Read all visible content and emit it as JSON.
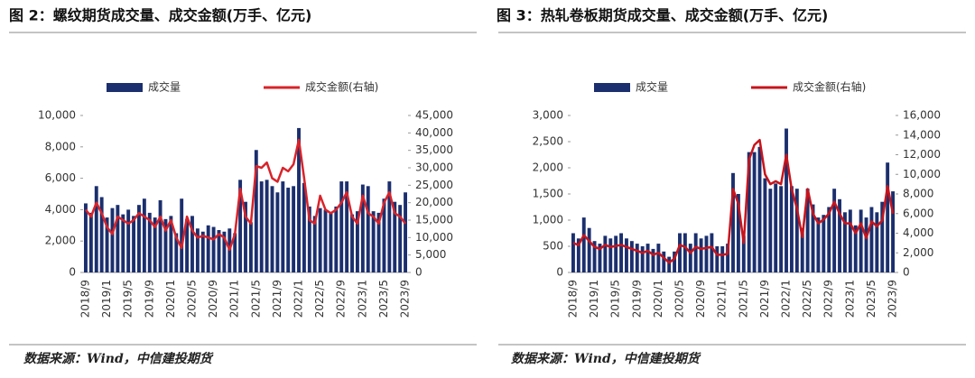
{
  "chart_data": [
    {
      "type": "bar-line",
      "title": "图 2：螺纹期货成交量、成交金额(万手、亿元)",
      "source": "数据来源：Wind，中信建投期货",
      "categories": [
        "2018/9",
        null,
        null,
        null,
        "2019/1",
        null,
        null,
        null,
        "2019/5",
        null,
        null,
        null,
        "2019/9",
        null,
        null,
        null,
        "2020/1",
        null,
        null,
        null,
        "2020/5",
        null,
        null,
        null,
        "2020/9",
        null,
        null,
        null,
        "2021/1",
        null,
        null,
        null,
        "2021/5",
        null,
        null,
        null,
        "2021/9",
        null,
        null,
        null,
        "2022/1",
        null,
        null,
        null,
        "2022/5",
        null,
        null,
        null,
        "2022/9",
        null,
        null,
        null,
        "2023/1",
        null,
        null,
        null,
        "2023/5",
        null,
        null,
        null,
        "2023/9"
      ],
      "series": [
        {
          "name": "成交量",
          "color": "#1b2f6e",
          "values": [
            4400,
            3800,
            5500,
            4800,
            3500,
            4100,
            4300,
            3700,
            4000,
            3600,
            4300,
            4700,
            3800,
            3500,
            4600,
            3400,
            3600,
            2500,
            4700,
            3400,
            3600,
            2800,
            2600,
            3000,
            2900,
            2700,
            2600,
            2800,
            2500,
            5900,
            4500,
            3200,
            7800,
            5800,
            5900,
            5500,
            5100,
            5800,
            5400,
            5500,
            9200,
            5700,
            4200,
            3600,
            4100,
            4000,
            3800,
            4200,
            5800,
            5800,
            3700,
            3900,
            5600,
            5500,
            3900,
            3800,
            4700,
            5800,
            4500,
            4300,
            5100
          ]
        },
        {
          "name": "成交金额(右轴)",
          "color": "#d9232a",
          "axis": "y2",
          "values": [
            18000,
            16000,
            20000,
            17000,
            13000,
            11000,
            16000,
            15000,
            14000,
            15000,
            17000,
            16000,
            15000,
            13000,
            16000,
            12000,
            15000,
            10000,
            7000,
            16000,
            12000,
            10000,
            10500,
            10000,
            9500,
            11000,
            10000,
            6500,
            11000,
            24000,
            16000,
            14000,
            30500,
            30000,
            31500,
            27000,
            26000,
            30000,
            29000,
            31000,
            38000,
            27000,
            15000,
            14000,
            22000,
            18000,
            17000,
            18000,
            20000,
            23000,
            16000,
            14000,
            22000,
            17000,
            16000,
            14000,
            20000,
            23000,
            17000,
            16000,
            14000
          ]
        }
      ],
      "ylim": [
        0,
        10000
      ],
      "yticks": [
        0,
        {
          "value": 2000,
          "label": "2,000"
        },
        {
          "value": 4000,
          "label": "4,000"
        },
        {
          "value": 6000,
          "label": "6,000"
        },
        {
          "value": 8000,
          "label": "8,000"
        },
        {
          "value": 10000,
          "label": "10,000"
        }
      ],
      "y2lim": [
        0,
        45000
      ],
      "y2ticks": [
        0,
        {
          "value": 5000,
          "label": "5,000"
        },
        {
          "value": 10000,
          "label": "10,000"
        },
        {
          "value": 15000,
          "label": "15,000"
        },
        {
          "value": 20000,
          "label": "20,000"
        },
        {
          "value": 25000,
          "label": "25,000"
        },
        {
          "value": 30000,
          "label": "30,000"
        },
        {
          "value": 35000,
          "label": "35,000"
        },
        {
          "value": 40000,
          "label": "40,000"
        },
        {
          "value": 45000,
          "label": "45,000"
        }
      ]
    },
    {
      "type": "bar-line",
      "title": "图 3：热轧卷板期货成交量、成交金额(万手、亿元)",
      "source": "数据来源：Wind，中信建投期货",
      "categories": [
        "2018/9",
        null,
        null,
        null,
        "2019/1",
        null,
        null,
        null,
        "2019/5",
        null,
        null,
        null,
        "2019/9",
        null,
        null,
        null,
        "2020/1",
        null,
        null,
        null,
        "2020/5",
        null,
        null,
        null,
        "2020/9",
        null,
        null,
        null,
        "2021/1",
        null,
        null,
        null,
        "2021/5",
        null,
        null,
        null,
        "2021/9",
        null,
        null,
        null,
        "2022/1",
        null,
        null,
        null,
        "2022/5",
        null,
        null,
        null,
        "2022/9",
        null,
        null,
        null,
        "2023/1",
        null,
        null,
        null,
        "2023/5",
        null,
        null,
        null,
        "2023/9"
      ],
      "series": [
        {
          "name": "成交量",
          "color": "#1b2f6e",
          "values": [
            750,
            650,
            1050,
            850,
            600,
            550,
            700,
            650,
            700,
            750,
            650,
            600,
            550,
            500,
            550,
            450,
            550,
            400,
            300,
            400,
            750,
            750,
            550,
            750,
            650,
            700,
            750,
            500,
            500,
            550,
            1900,
            1500,
            700,
            2300,
            2300,
            2400,
            1800,
            1600,
            1700,
            1650,
            2750,
            1650,
            1600,
            850,
            1600,
            1300,
            1050,
            1100,
            1250,
            1600,
            1400,
            1150,
            1200,
            900,
            1200,
            1050,
            1250,
            1150,
            1350,
            2100,
            1550
          ]
        },
        {
          "name": "成交金额(右轴)",
          "color": "#c8141c",
          "axis": "y2",
          "values": [
            3000,
            2800,
            3800,
            3200,
            2600,
            2400,
            2800,
            2600,
            2700,
            2800,
            2600,
            2400,
            2200,
            2000,
            2200,
            1800,
            2000,
            1500,
            1000,
            1400,
            2800,
            2600,
            2000,
            2600,
            2400,
            2500,
            2600,
            1800,
            1800,
            1900,
            8500,
            7000,
            3000,
            11500,
            13000,
            13500,
            10000,
            9000,
            9300,
            9000,
            12000,
            8500,
            6500,
            3600,
            8500,
            6000,
            5000,
            5400,
            6000,
            7200,
            6000,
            5000,
            5000,
            4000,
            5000,
            3500,
            5200,
            4700,
            5300,
            8800,
            6000
          ]
        }
      ],
      "ylim": [
        0,
        3000
      ],
      "yticks": [
        0,
        500,
        {
          "value": 1000,
          "label": "1,000"
        },
        {
          "value": 1500,
          "label": "1,500"
        },
        {
          "value": 2000,
          "label": "2,000"
        },
        {
          "value": 2500,
          "label": "2,500"
        },
        {
          "value": 3000,
          "label": "3,000"
        }
      ],
      "y2lim": [
        0,
        16000
      ],
      "y2ticks": [
        0,
        {
          "value": 2000,
          "label": "2,000"
        },
        {
          "value": 4000,
          "label": "4,000"
        },
        {
          "value": 6000,
          "label": "6,000"
        },
        {
          "value": 8000,
          "label": "8,000"
        },
        {
          "value": 10000,
          "label": "10,000"
        },
        {
          "value": 12000,
          "label": "12,000"
        },
        {
          "value": 14000,
          "label": "14,000"
        },
        {
          "value": 16000,
          "label": "16,000"
        }
      ]
    }
  ]
}
